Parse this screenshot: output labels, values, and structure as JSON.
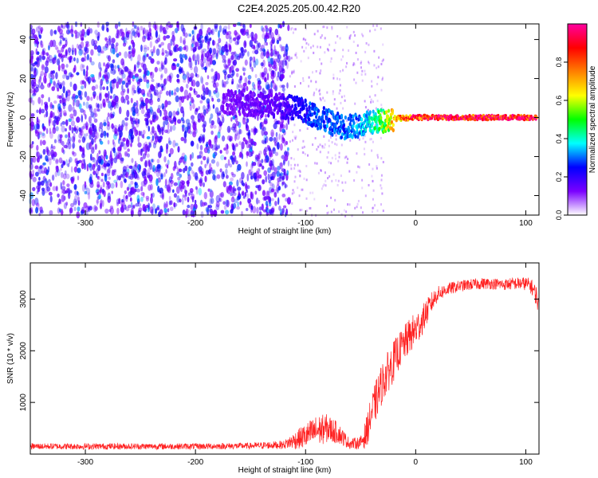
{
  "page": {
    "title": "C2E4.2025.205.00.42.R20"
  },
  "chart_data": [
    {
      "type": "heatmap",
      "title": "C2E4.2025.205.00.42.R20",
      "xlabel": "Height of straight line (km)",
      "ylabel": "Frequency (Hz)",
      "xlim": [
        -350,
        112
      ],
      "ylim": [
        -50,
        48
      ],
      "xticks": [
        -300,
        -200,
        -100,
        0,
        100
      ],
      "yticks": [
        -40,
        -20,
        0,
        20,
        40
      ],
      "colorbar": {
        "label": "Normalized spectral amplitude",
        "range": [
          0.0,
          1.0
        ],
        "ticks": [
          0.0,
          0.2,
          0.4,
          0.6,
          0.8
        ],
        "colormap": [
          "#ffffff",
          "#7a00ff",
          "#0000ff",
          "#00ffff",
          "#00ff00",
          "#ffff00",
          "#ff8000",
          "#ff0000",
          "#ff00a0"
        ]
      },
      "features": {
        "noise_region_x": [
          -350,
          -115
        ],
        "noise_amplitude": 0.15,
        "signal_track": [
          {
            "x": -175,
            "y": 8,
            "a": 0.12
          },
          {
            "x": -150,
            "y": 7,
            "a": 0.14
          },
          {
            "x": -125,
            "y": 6,
            "a": 0.16
          },
          {
            "x": -110,
            "y": 5,
            "a": 0.22
          },
          {
            "x": -95,
            "y": 2,
            "a": 0.28
          },
          {
            "x": -80,
            "y": -2,
            "a": 0.3
          },
          {
            "x": -65,
            "y": -5,
            "a": 0.3
          },
          {
            "x": -50,
            "y": -4,
            "a": 0.35
          },
          {
            "x": -35,
            "y": -2,
            "a": 0.45
          },
          {
            "x": -20,
            "y": -0.5,
            "a": 0.7
          },
          {
            "x": 0,
            "y": 0,
            "a": 0.9
          },
          {
            "x": 40,
            "y": 0,
            "a": 0.95
          },
          {
            "x": 80,
            "y": 0,
            "a": 0.95
          },
          {
            "x": 110,
            "y": 0,
            "a": 0.95
          }
        ]
      }
    },
    {
      "type": "line",
      "xlabel": "Height of straight line (km)",
      "ylabel": "SNR (10 * v/v)",
      "xlim": [
        -350,
        112
      ],
      "ylim": [
        0,
        3700
      ],
      "xticks": [
        -300,
        -200,
        -100,
        0,
        100
      ],
      "yticks": [
        1000,
        2000,
        3000
      ],
      "series": [
        {
          "color": "#ff2020",
          "x": [
            -350,
            -300,
            -250,
            -200,
            -150,
            -120,
            -100,
            -90,
            -80,
            -70,
            -60,
            -50,
            -45,
            -40,
            -35,
            -30,
            -25,
            -20,
            -15,
            -10,
            -5,
            0,
            5,
            10,
            15,
            20,
            30,
            40,
            50,
            60,
            70,
            80,
            90,
            100,
            105,
            110,
            112
          ],
          "values": [
            150,
            150,
            150,
            150,
            160,
            180,
            350,
            450,
            500,
            400,
            200,
            220,
            400,
            800,
            1100,
            1400,
            1600,
            1800,
            2000,
            2150,
            2300,
            2400,
            2550,
            2750,
            2950,
            3100,
            3200,
            3250,
            3280,
            3300,
            3300,
            3280,
            3300,
            3300,
            3250,
            3050,
            2800
          ],
          "noise": [
            60,
            60,
            60,
            60,
            60,
            80,
            250,
            300,
            280,
            200,
            100,
            120,
            300,
            350,
            400,
            400,
            400,
            400,
            350,
            350,
            350,
            350,
            300,
            250,
            200,
            150,
            120,
            110,
            110,
            110,
            110,
            110,
            120,
            130,
            150,
            200,
            200
          ]
        }
      ]
    }
  ]
}
